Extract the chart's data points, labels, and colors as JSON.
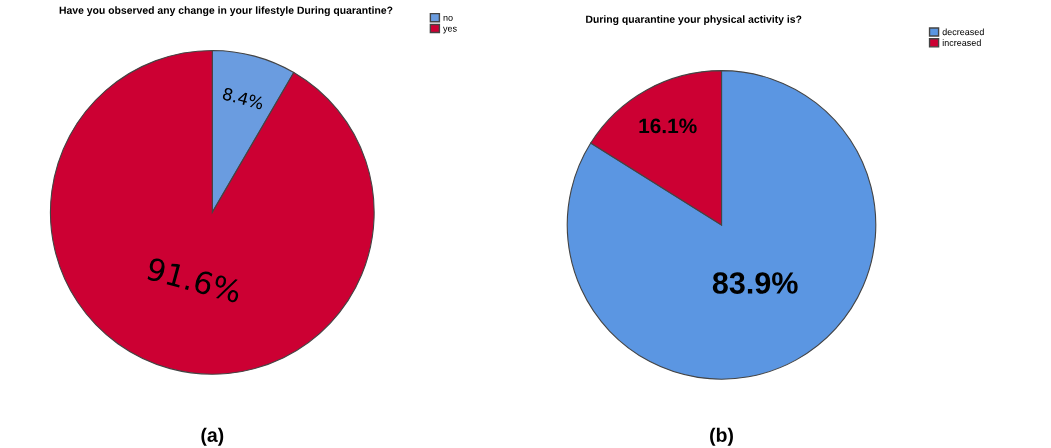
{
  "chart_data": [
    {
      "type": "pie",
      "title": "Have you observed any change in your lifestyle During quarantine?",
      "categories": [
        "no",
        "yes"
      ],
      "values": [
        8.4,
        91.6
      ],
      "colors": [
        "#6a9ce0",
        "#cc0033"
      ],
      "value_labels": [
        "8.4%",
        "91.6%"
      ],
      "legend": "top right",
      "annotations": [
        "(a)"
      ]
    },
    {
      "type": "pie",
      "title": "During quarantine your physical activity is?",
      "categories": [
        "decreased",
        "increased"
      ],
      "values": [
        83.9,
        16.1
      ],
      "colors": [
        "#5b96e2",
        "#cc0033"
      ],
      "value_labels": [
        "83.9%",
        "16.1%"
      ],
      "legend": "top right",
      "annotations": [
        "(b)"
      ]
    }
  ]
}
